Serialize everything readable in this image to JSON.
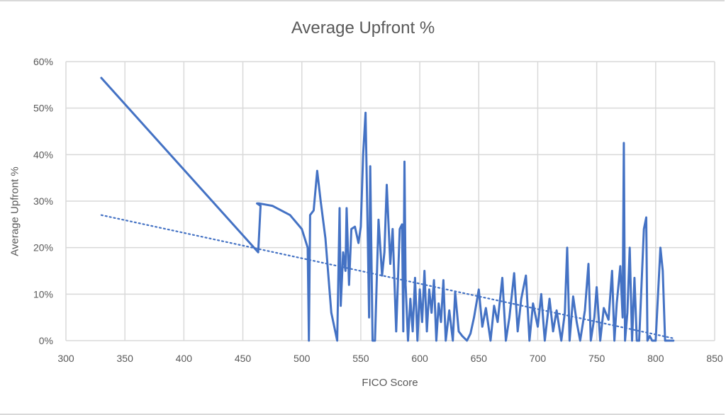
{
  "chart_data": {
    "type": "line",
    "title": "Average Upfront %",
    "xlabel": "FICO Score",
    "ylabel": "Average Upfront %",
    "xlim": [
      300,
      850
    ],
    "ylim": [
      0,
      60
    ],
    "x_ticks": [
      "300",
      "350",
      "400",
      "450",
      "500",
      "550",
      "600",
      "650",
      "700",
      "750",
      "800",
      "850"
    ],
    "y_ticks": [
      "0%",
      "10%",
      "20%",
      "30%",
      "40%",
      "50%",
      "60%"
    ],
    "grid": true,
    "legend": "none",
    "colors": {
      "line": "#4472C4",
      "trend": "#4472C4",
      "grid": "#d9d9d9",
      "text": "#595959"
    },
    "series": [
      {
        "name": "Average Upfront %",
        "style": "smoothed-line",
        "x": [
          330,
          463,
          465,
          462,
          464,
          475,
          490,
          500,
          505,
          506,
          507,
          510,
          513,
          516,
          520,
          525,
          530,
          532,
          533,
          535,
          537,
          538,
          540,
          542,
          545,
          548,
          550,
          552,
          554,
          556,
          557,
          558,
          560,
          562,
          565,
          568,
          570,
          572,
          575,
          577,
          580,
          583,
          585,
          586,
          587,
          588,
          590,
          592,
          594,
          596,
          598,
          600,
          602,
          604,
          606,
          608,
          610,
          612,
          614,
          616,
          618,
          620,
          622,
          625,
          628,
          630,
          633,
          636,
          640,
          643,
          646,
          650,
          653,
          656,
          660,
          663,
          666,
          670,
          673,
          676,
          680,
          683,
          686,
          690,
          693,
          696,
          700,
          703,
          706,
          710,
          713,
          716,
          720,
          723,
          725,
          727,
          730,
          733,
          736,
          740,
          743,
          745,
          748,
          750,
          753,
          756,
          760,
          763,
          765,
          767,
          770,
          772,
          773,
          774,
          776,
          778,
          780,
          782,
          784,
          786,
          790,
          792,
          793,
          795,
          797,
          800,
          804,
          806,
          808,
          810,
          815
        ],
        "y": [
          56.5,
          19.0,
          29.0,
          29.5,
          29.5,
          29.0,
          27.0,
          24.0,
          20.0,
          0,
          27.0,
          28.0,
          36.5,
          30.0,
          22.0,
          6.0,
          0,
          28.5,
          7.5,
          19.0,
          15.0,
          28.5,
          12.0,
          24.0,
          24.5,
          21.0,
          24.5,
          40.0,
          49.0,
          21.0,
          5.0,
          37.5,
          0,
          0,
          26.0,
          14.0,
          19.0,
          33.5,
          16.5,
          24.0,
          2.0,
          24.0,
          25.0,
          2.0,
          38.5,
          12.0,
          0,
          9.0,
          2.0,
          13.5,
          0,
          11.0,
          4.0,
          15.0,
          2.0,
          11.0,
          6.0,
          13.0,
          0,
          8.0,
          4.0,
          13.0,
          0,
          6.5,
          0,
          10.5,
          2.0,
          1.0,
          0,
          1.5,
          5.0,
          11.0,
          3.0,
          7.0,
          0,
          7.5,
          4.0,
          13.5,
          0,
          5.0,
          14.5,
          2.0,
          9.0,
          14.0,
          0,
          8.0,
          3.0,
          10.0,
          0,
          9.0,
          2.0,
          6.5,
          0,
          6.0,
          20.0,
          0,
          9.5,
          4.0,
          0,
          6.5,
          16.5,
          0,
          5.0,
          11.5,
          0,
          7.0,
          4.5,
          15.0,
          0,
          8.0,
          16.0,
          5.0,
          42.5,
          0,
          6.0,
          20.0,
          0,
          13.5,
          0,
          0,
          24.0,
          26.5,
          0,
          1.0,
          0,
          0,
          20.0,
          15.0,
          0,
          0,
          0
        ]
      },
      {
        "name": "Linear trendline",
        "style": "dotted-line",
        "x": [
          330,
          815
        ],
        "y": [
          27.0,
          0.5
        ]
      }
    ]
  }
}
